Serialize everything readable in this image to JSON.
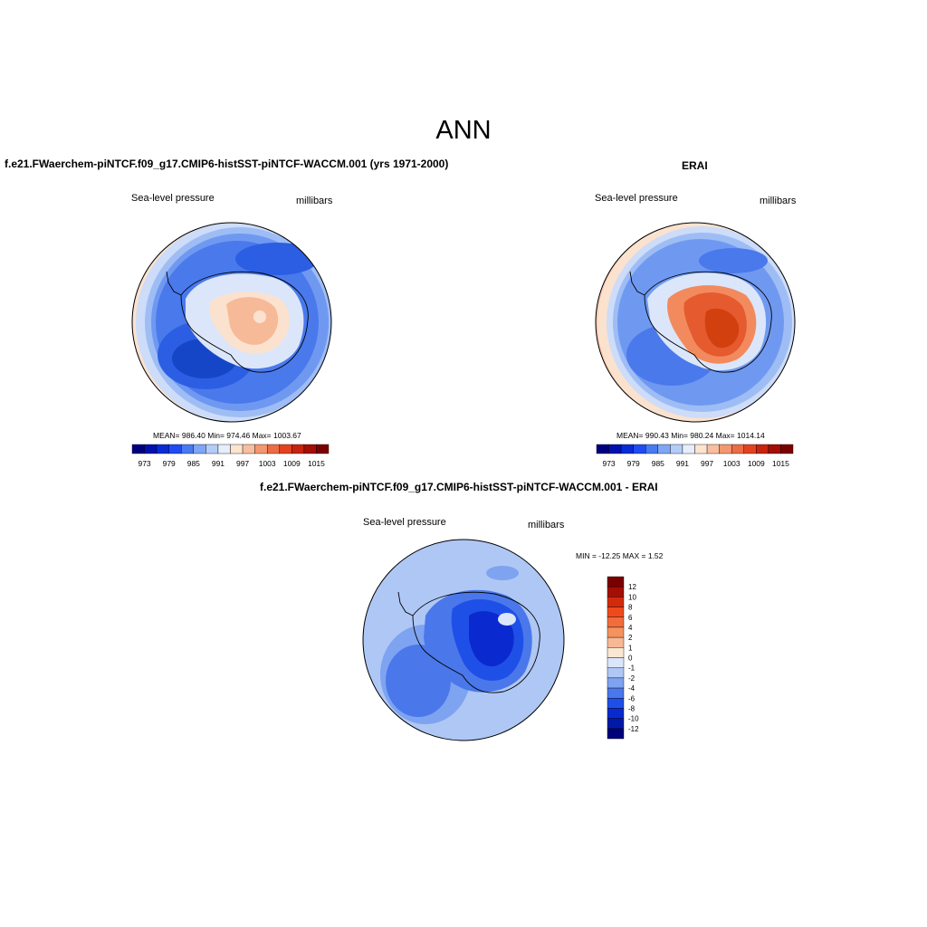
{
  "figure": {
    "title": "ANN",
    "case_title": "f.e21.FWaerchem-piNTCF.f09_g17.CMIP6-histSST-piNTCF-WACCM.001 (yrs 1971-2000)",
    "obs_title": "ERAI",
    "diff_title": "f.e21.FWaerchem-piNTCF.f09_g17.CMIP6-histSST-piNTCF-WACCM.001 - ERAI"
  },
  "panels": {
    "case": {
      "variable": "Sea-level pressure",
      "units": "millibars",
      "stats": "MEAN= 986.40   Min= 974.46   Max= 1003.67"
    },
    "obs": {
      "variable": "Sea-level pressure",
      "units": "millibars",
      "stats": "MEAN= 990.43   Min= 980.24   Max= 1014.14"
    },
    "diff": {
      "variable": "Sea-level pressure",
      "units": "millibars",
      "stats": "MIN = -12.25 MAX =   1.52"
    }
  },
  "colorbars": {
    "abs_labels": [
      "973",
      "979",
      "985",
      "991",
      "997",
      "1003",
      "1009",
      "1015"
    ],
    "abs_colors": [
      "#00007f",
      "#0010b0",
      "#0a2ad6",
      "#1e4cf2",
      "#4a7af2",
      "#7ea6f4",
      "#b4cdf8",
      "#e6eefc",
      "#fde4d0",
      "#f9bea0",
      "#f39770",
      "#ec6c44",
      "#e4421f",
      "#c72410",
      "#a30e06",
      "#7a0000"
    ],
    "diff_labels": [
      "12",
      "10",
      "8",
      "6",
      "4",
      "2",
      "1",
      "0",
      "-1",
      "-2",
      "-4",
      "-6",
      "-8",
      "-10",
      "-12"
    ],
    "diff_colors": [
      "#7a0000",
      "#a30e06",
      "#d42a0c",
      "#ee4a1e",
      "#f26c3c",
      "#f5925e",
      "#f8b894",
      "#fbe6d2",
      "#dbe6fb",
      "#afc7f5",
      "#7ea3f0",
      "#4a78eb",
      "#1e50e8",
      "#0a2ad0",
      "#001aa8",
      "#00007a"
    ]
  },
  "chart_data": [
    {
      "type": "heatmap",
      "title": "f.e21.FWaerchem-piNTCF.f09_g17.CMIP6-histSST-piNTCF-WACCM.001 (yrs 1971-2000)",
      "projection": "south polar stereographic",
      "variable": "Sea-level pressure",
      "units": "millibars",
      "mean": 986.4,
      "min": 974.46,
      "max": 1003.67,
      "levels": [
        973,
        976,
        979,
        982,
        985,
        988,
        991,
        994,
        997,
        1000,
        1003,
        1006,
        1009,
        1012,
        1015
      ]
    },
    {
      "type": "heatmap",
      "title": "ERAI",
      "projection": "south polar stereographic",
      "variable": "Sea-level pressure",
      "units": "millibars",
      "mean": 990.43,
      "min": 980.24,
      "max": 1014.14,
      "levels": [
        973,
        976,
        979,
        982,
        985,
        988,
        991,
        994,
        997,
        1000,
        1003,
        1006,
        1009,
        1012,
        1015
      ]
    },
    {
      "type": "heatmap",
      "title": "f.e21.FWaerchem-piNTCF.f09_g17.CMIP6-histSST-piNTCF-WACCM.001 - ERAI",
      "projection": "south polar stereographic",
      "variable": "Sea-level pressure",
      "units": "millibars",
      "min": -12.25,
      "max": 1.52,
      "levels": [
        -12,
        -10,
        -8,
        -6,
        -4,
        -2,
        -1,
        0,
        1,
        2,
        4,
        6,
        8,
        10,
        12
      ]
    }
  ]
}
